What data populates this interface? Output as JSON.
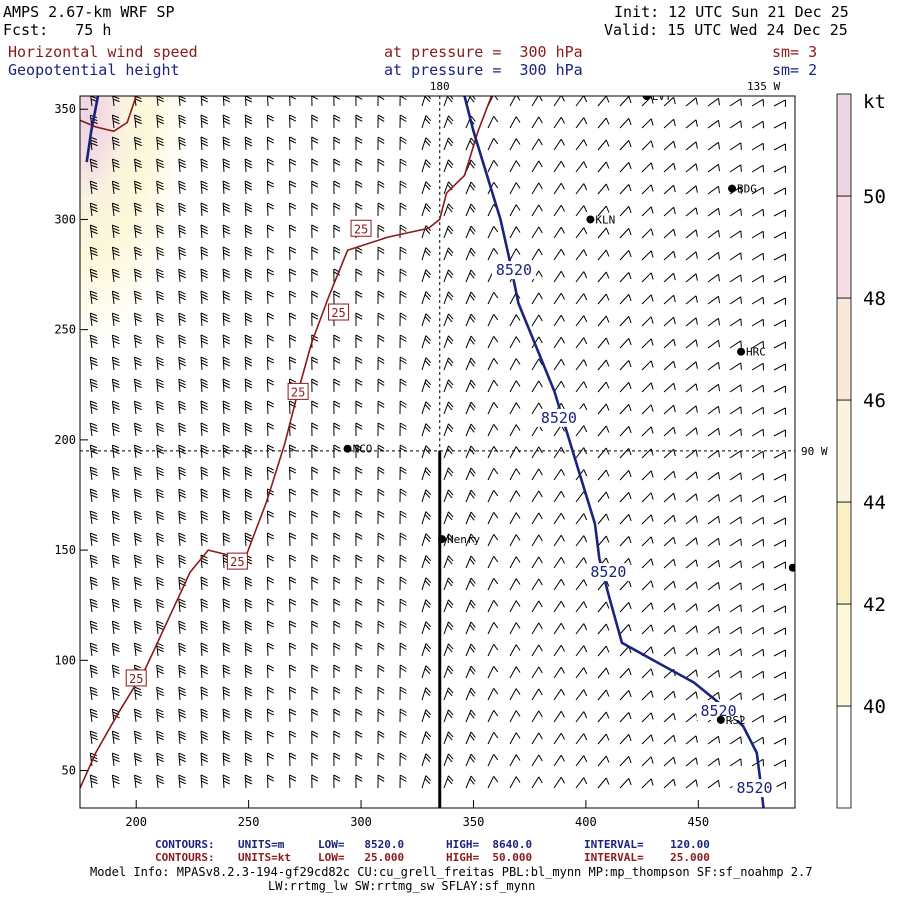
{
  "header": {
    "model": "AMPS 2.67-km WRF SP",
    "fcst": "Fcst:   75 h",
    "init": "Init: 12 UTC Sun 21 Dec 25",
    "valid": "Valid: 15 UTC Wed 24 Dec 25",
    "field1": "Horizontal wind speed",
    "field1_level": "at pressure =  300 hPa",
    "field1_sm": "sm= 3",
    "field2": "Geopotential height",
    "field2_level": "at pressure =  300 hPa",
    "field2_sm": "sm= 2"
  },
  "chart_data": {
    "type": "contour",
    "x_ticks": [
      200,
      250,
      300,
      350,
      400,
      450
    ],
    "y_ticks": [
      50,
      100,
      150,
      200,
      250,
      300,
      350
    ],
    "xlim": [
      175,
      493
    ],
    "ylim": [
      33,
      356
    ],
    "colorbar": {
      "unit": "kt",
      "ticks": [
        40,
        42,
        44,
        46,
        48,
        50
      ],
      "bands": [
        {
          "range": [
            38,
            40
          ],
          "color": "#ffffff"
        },
        {
          "range": [
            40,
            42
          ],
          "color": "#fdf8da"
        },
        {
          "range": [
            42,
            44
          ],
          "color": "#fbefc4"
        },
        {
          "range": [
            44,
            46
          ],
          "color": "#faf3de"
        },
        {
          "range": [
            46,
            48
          ],
          "color": "#f8e8d8"
        },
        {
          "range": [
            48,
            50
          ],
          "color": "#f6dde4"
        },
        {
          "range": [
            50,
            52
          ],
          "color": "#ecd5e4"
        }
      ]
    },
    "meridian_labels": [
      "180",
      "135 W",
      "90 W"
    ],
    "height_contours": [
      {
        "value": 8520,
        "label": "8520",
        "points": [
          [
            346,
            356
          ],
          [
            350,
            340
          ],
          [
            356,
            320
          ],
          [
            362,
            300
          ],
          [
            366,
            282
          ],
          [
            370,
            262
          ],
          [
            378,
            242
          ],
          [
            386,
            222
          ],
          [
            392,
            202
          ],
          [
            398,
            182
          ],
          [
            404,
            162
          ],
          [
            406,
            146
          ],
          [
            410,
            130
          ],
          [
            416,
            108
          ],
          [
            430,
            100
          ],
          [
            448,
            90
          ],
          [
            460,
            80
          ],
          [
            470,
            70
          ],
          [
            476,
            58
          ],
          [
            478,
            42
          ],
          [
            479,
            33
          ]
        ],
        "label_positions": [
          [
            368,
            277
          ],
          [
            388,
            210
          ],
          [
            410,
            140
          ],
          [
            459,
            77
          ],
          [
            475,
            42
          ]
        ]
      },
      {
        "value": 8520,
        "label": "",
        "points": [
          [
            183,
            356
          ],
          [
            180,
            340
          ],
          [
            178,
            326
          ]
        ],
        "label_positions": []
      }
    ],
    "wind_contours": [
      {
        "value": 25,
        "label": "25",
        "points": [
          [
            175,
            42
          ],
          [
            182,
            58
          ],
          [
            192,
            76
          ],
          [
            204,
            96
          ],
          [
            214,
            118
          ],
          [
            224,
            140
          ],
          [
            232,
            150
          ],
          [
            240,
            148
          ],
          [
            248,
            145
          ],
          [
            258,
            172
          ],
          [
            266,
            198
          ],
          [
            272,
            222
          ],
          [
            278,
            244
          ],
          [
            286,
            266
          ],
          [
            294,
            286
          ],
          [
            312,
            292
          ],
          [
            330,
            296
          ],
          [
            335,
            300
          ],
          [
            338,
            312
          ],
          [
            346,
            320
          ],
          [
            352,
            340
          ],
          [
            358,
            356
          ]
        ],
        "label_positions": [
          [
            200,
            92
          ],
          [
            245,
            145
          ],
          [
            272,
            222
          ],
          [
            290,
            258
          ],
          [
            300,
            296
          ]
        ]
      },
      {
        "value": 25,
        "label": "",
        "points": [
          [
            175,
            345
          ],
          [
            182,
            342
          ],
          [
            190,
            340
          ],
          [
            196,
            344
          ],
          [
            200,
            356
          ]
        ],
        "label_positions": []
      }
    ],
    "stations": [
      {
        "name": "LVT",
        "x": 427,
        "y": 356
      },
      {
        "name": "BDG",
        "x": 465,
        "y": 314
      },
      {
        "name": "KLN",
        "x": 402,
        "y": 300
      },
      {
        "name": "HRC",
        "x": 469,
        "y": 240
      },
      {
        "name": "NCO",
        "x": 294,
        "y": 196
      },
      {
        "name": "Henry",
        "x": 336,
        "y": 155
      },
      {
        "name": "",
        "x": 492,
        "y": 142
      },
      {
        "name": "RS2",
        "x": 460,
        "y": 73
      }
    ]
  },
  "footer": {
    "row1_label": "CONTOURS:",
    "row1_units": "UNITS=m",
    "row1_low": "LOW=   8520.0",
    "row1_high": "HIGH=  8640.0",
    "row1_interval": "INTERVAL=    120.00",
    "row2_label": "CONTOURS:",
    "row2_units": "UNITS=kt",
    "row2_low": "LOW=   25.000",
    "row2_high": "HIGH=  50.000",
    "row2_interval": "INTERVAL=    25.000",
    "info1": "Model Info: MPASv8.2.3-194-gf29cd82c CU:cu_grell_freitas PBL:bl_mynn MP:mp_thompson SF:sf_noahmp 2.7",
    "info2": "LW:rrtmg_lw SW:rrtmg_sw SFLAY:sf_mynn"
  },
  "colors": {
    "height": "#1a237e",
    "wind": "#8b1a1a",
    "barb": "#000000"
  }
}
